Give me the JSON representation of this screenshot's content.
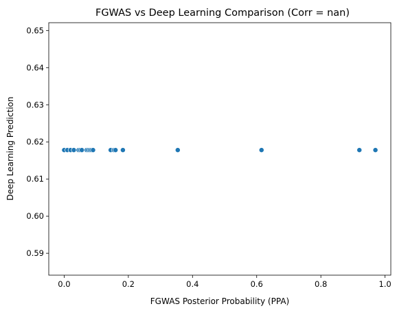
{
  "chart_data": {
    "type": "scatter",
    "title": "FGWAS vs Deep Learning Comparison (Corr = nan)",
    "xlabel": "FGWAS Posterior Probability (PPA)",
    "ylabel": "Deep Learning Prediction",
    "xlim": [
      -0.048,
      1.018
    ],
    "ylim": [
      0.5841,
      0.6521
    ],
    "xticks": [
      0.0,
      0.2,
      0.4,
      0.6,
      0.8,
      1.0
    ],
    "xtick_labels": [
      "0.0",
      "0.2",
      "0.4",
      "0.6",
      "0.8",
      "1.0"
    ],
    "yticks": [
      0.59,
      0.6,
      0.61,
      0.62,
      0.63,
      0.64,
      0.65
    ],
    "ytick_labels": [
      "0.59",
      "0.60",
      "0.61",
      "0.62",
      "0.63",
      "0.64",
      "0.65"
    ],
    "grid": false,
    "marker_color": "#1f77b4",
    "x": [
      0.0,
      0.01,
      0.02,
      0.03,
      0.045,
      0.05,
      0.055,
      0.07,
      0.075,
      0.08,
      0.085,
      0.09,
      0.145,
      0.155,
      0.16,
      0.183,
      0.354,
      0.615,
      0.92,
      0.97
    ],
    "y": [
      0.6178,
      0.6178,
      0.6178,
      0.6178,
      0.6178,
      0.6178,
      0.6178,
      0.6178,
      0.6178,
      0.6178,
      0.6178,
      0.6178,
      0.6178,
      0.6178,
      0.6178,
      0.6178,
      0.6178,
      0.6178,
      0.6178,
      0.6178
    ]
  }
}
